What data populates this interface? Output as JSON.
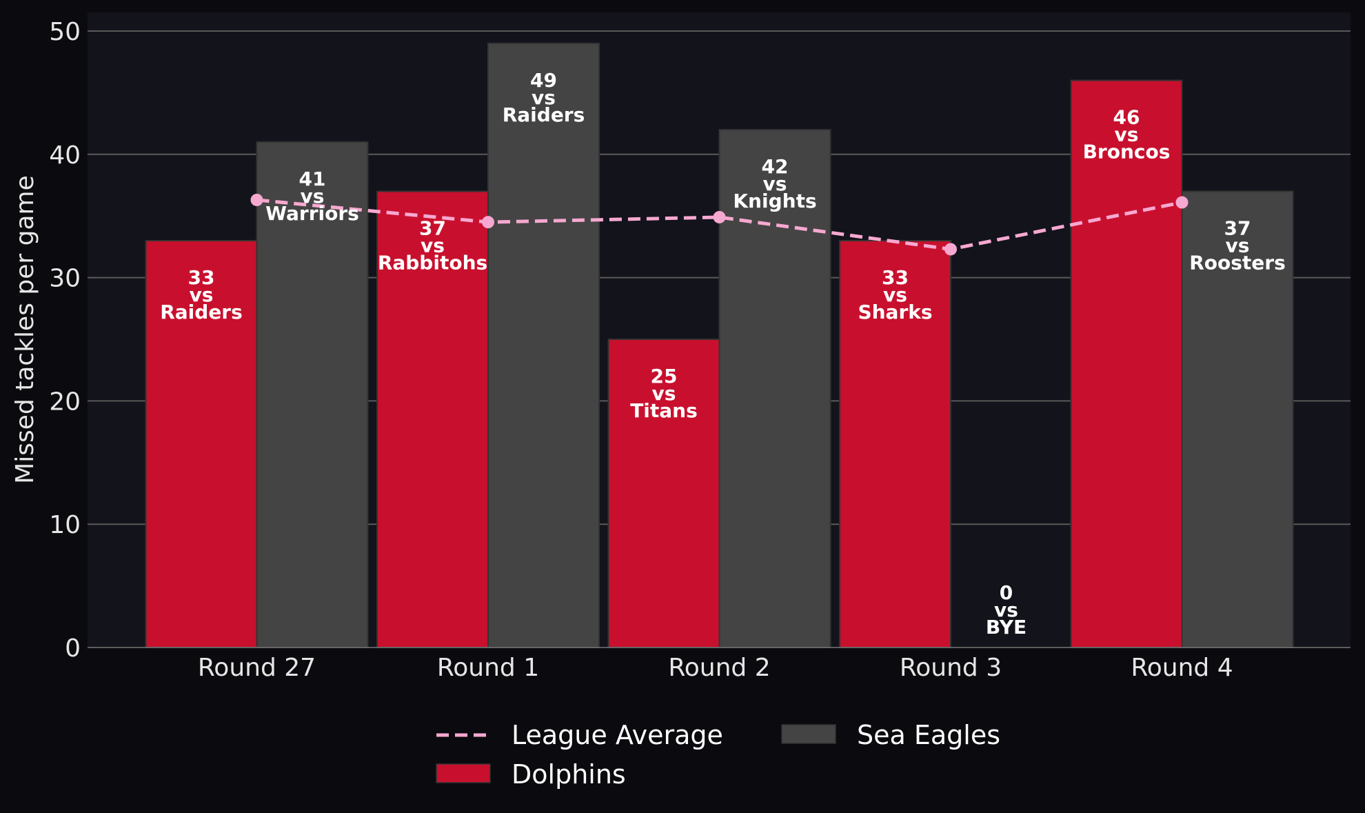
{
  "chart_data": {
    "type": "bar",
    "categories": [
      "Round 27",
      "Round 1",
      "Round 2",
      "Round 3",
      "Round 4"
    ],
    "series": [
      {
        "name": "Dolphins",
        "color": "#c8102e",
        "values": [
          33,
          37,
          25,
          33,
          46
        ],
        "labels": [
          "33\nvs\nRaiders",
          "37\nvs\nRabbitohs",
          "25\nvs\nTitans",
          "33\nvs\nSharks",
          "46\nvs\nBroncos"
        ]
      },
      {
        "name": "Sea Eagles",
        "color": "#444444",
        "values": [
          41,
          49,
          42,
          0,
          37
        ],
        "labels": [
          "41\nvs\nWarriors",
          "49\nvs\nRaiders",
          "42\nvs\nKnights",
          "0\nvs\nBYE",
          "37\nvs\nRoosters"
        ]
      }
    ],
    "line_series": {
      "name": "League Average",
      "color": "#f7a8d0",
      "style": "dashed",
      "values": [
        36.3,
        34.5,
        34.9,
        32.3,
        36.1
      ]
    },
    "ylabel": "Missed tackles per game",
    "xlabel": "",
    "ylim": [
      0,
      51.5
    ],
    "yticks": [
      0,
      10,
      20,
      30,
      40,
      50
    ],
    "grid": "horizontal",
    "legend_position": "bottom-center",
    "colors": {
      "figure_background": "#0b0b0f",
      "plot_background": "#13131b",
      "grid": "#5a5a5a",
      "text": "#e6e6e6"
    }
  }
}
